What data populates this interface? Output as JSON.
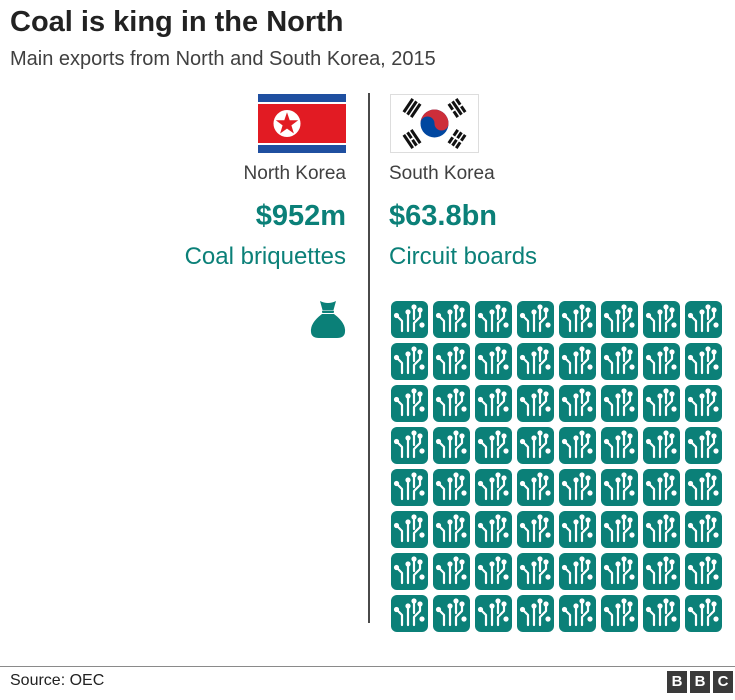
{
  "header": {
    "title": "Coal is king in the North",
    "subtitle": "Main exports from North and South Korea, 2015"
  },
  "colors": {
    "accent": "#0b8078",
    "nk_red": "#e21b23",
    "nk_blue": "#1f4fa0",
    "sk_red": "#cd2e3a",
    "sk_blue": "#0047a0",
    "text": "#222222"
  },
  "chart_data": {
    "type": "table",
    "columns": [
      {
        "country": "North Korea",
        "value": "$952m",
        "product": "Coal briquettes",
        "icon": "coal-bag-icon",
        "icon_count": 1
      },
      {
        "country": "South Korea",
        "value": "$63.8bn",
        "product": "Circuit boards",
        "icon": "circuit-board-icon",
        "icon_count": 64
      }
    ]
  },
  "footer": {
    "source": "Source: OEC",
    "logo_letters": [
      "B",
      "B",
      "C"
    ]
  }
}
